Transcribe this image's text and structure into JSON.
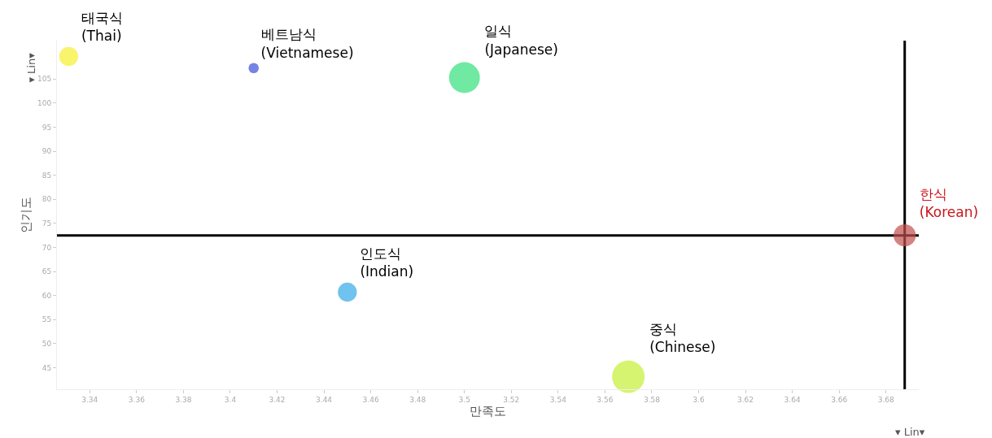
{
  "chart_data": {
    "type": "bubble",
    "xlabel": "만족도",
    "ylabel": "인기도",
    "annotations": [
      "▾ Lin▾",
      "▾ Lin▾"
    ],
    "xlim": [
      3.326,
      3.694
    ],
    "ylim": [
      40.5,
      113
    ],
    "xticks": [
      3.34,
      3.36,
      3.38,
      3.4,
      3.42,
      3.44,
      3.46,
      3.48,
      3.5,
      3.52,
      3.54,
      3.56,
      3.58,
      3.6,
      3.62,
      3.64,
      3.66,
      3.68
    ],
    "yticks": [
      45,
      50,
      55,
      60,
      65,
      70,
      75,
      80,
      85,
      90,
      95,
      100,
      105
    ],
    "grid": false,
    "legend": false,
    "ref_lines": [
      {
        "axis": "y",
        "value": 72.5,
        "color": "#000000"
      },
      {
        "axis": "x",
        "value": 3.688,
        "color": "#000000"
      }
    ],
    "series": [
      {
        "name": "태국식\n(Thai)",
        "color": "#f5ef2e",
        "x": [
          3.331
        ],
        "values": [
          109.7
        ],
        "sizes": [
          0.34
        ]
      },
      {
        "name": "베트남식\n(Vietnamese)",
        "color": "#3a4fd8",
        "x": [
          3.41
        ],
        "values": [
          107.3
        ],
        "sizes": [
          0.1
        ]
      },
      {
        "name": "일식\n(Japanese)",
        "color": "#33e07a",
        "x": [
          3.5
        ],
        "values": [
          105.3
        ],
        "sizes": [
          0.9
        ]
      },
      {
        "name": "한식\n(Korean)",
        "color": "#c0504d",
        "x": [
          3.688
        ],
        "values": [
          72.5
        ],
        "sizes": [
          0.47
        ]
      },
      {
        "name": "인도식\n(Indian)",
        "color": "#33a8e8",
        "x": [
          3.45
        ],
        "values": [
          60.7
        ],
        "sizes": [
          0.34
        ]
      },
      {
        "name": "중식\n(Chinese)",
        "color": "#c4f032",
        "x": [
          3.57
        ],
        "values": [
          43.1
        ],
        "sizes": [
          1
        ]
      }
    ]
  }
}
